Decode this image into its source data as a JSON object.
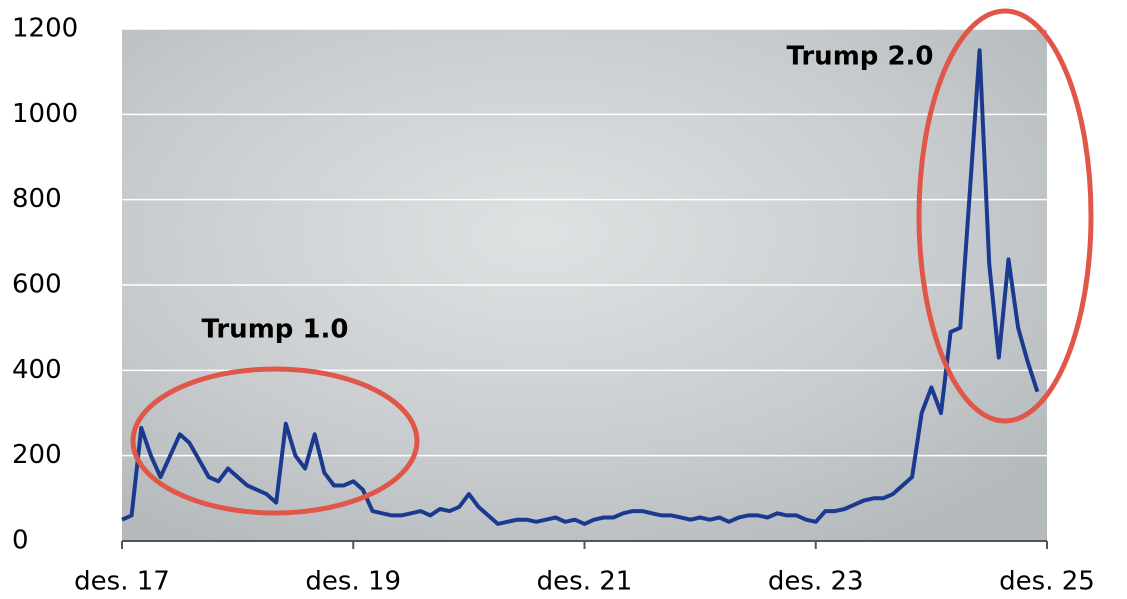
{
  "chart_data": {
    "type": "line",
    "x": [
      "2017-12",
      "2018-01",
      "2018-02",
      "2018-03",
      "2018-04",
      "2018-05",
      "2018-06",
      "2018-07",
      "2018-08",
      "2018-09",
      "2018-10",
      "2018-11",
      "2018-12",
      "2019-01",
      "2019-02",
      "2019-03",
      "2019-04",
      "2019-05",
      "2019-06",
      "2019-07",
      "2019-08",
      "2019-09",
      "2019-10",
      "2019-11",
      "2019-12",
      "2020-01",
      "2020-02",
      "2020-03",
      "2020-04",
      "2020-05",
      "2020-06",
      "2020-07",
      "2020-08",
      "2020-09",
      "2020-10",
      "2020-11",
      "2020-12",
      "2021-01",
      "2021-02",
      "2021-03",
      "2021-04",
      "2021-05",
      "2021-06",
      "2021-07",
      "2021-08",
      "2021-09",
      "2021-10",
      "2021-11",
      "2021-12",
      "2022-01",
      "2022-02",
      "2022-03",
      "2022-04",
      "2022-05",
      "2022-06",
      "2022-07",
      "2022-08",
      "2022-09",
      "2022-10",
      "2022-11",
      "2022-12",
      "2023-01",
      "2023-02",
      "2023-03",
      "2023-04",
      "2023-05",
      "2023-06",
      "2023-07",
      "2023-08",
      "2023-09",
      "2023-10",
      "2023-11",
      "2023-12",
      "2024-01",
      "2024-02",
      "2024-03",
      "2024-04",
      "2024-05",
      "2024-06",
      "2024-07",
      "2024-08",
      "2024-09",
      "2024-10",
      "2024-11",
      "2024-12",
      "2025-01",
      "2025-02",
      "2025-03",
      "2025-04",
      "2025-05",
      "2025-06",
      "2025-07",
      "2025-08",
      "2025-09",
      "2025-10",
      "2025-11"
    ],
    "values": [
      50,
      60,
      265,
      200,
      150,
      200,
      250,
      230,
      190,
      150,
      140,
      170,
      150,
      130,
      120,
      110,
      90,
      275,
      200,
      170,
      250,
      160,
      130,
      130,
      140,
      120,
      70,
      65,
      60,
      60,
      65,
      70,
      60,
      75,
      70,
      80,
      110,
      80,
      60,
      40,
      45,
      50,
      50,
      45,
      50,
      55,
      45,
      50,
      40,
      50,
      55,
      55,
      65,
      70,
      70,
      65,
      60,
      60,
      55,
      50,
      55,
      50,
      55,
      45,
      55,
      60,
      60,
      55,
      65,
      60,
      60,
      50,
      45,
      70,
      70,
      75,
      85,
      95,
      100,
      100,
      110,
      130,
      150,
      300,
      360,
      300,
      490,
      500,
      820,
      1150,
      650,
      430,
      660,
      500,
      420,
      350
    ],
    "color": "#1a3a8f",
    "xlim": [
      "2017-12",
      "2025-12"
    ],
    "xticks": [
      {
        "value": "2017-12",
        "label": "des. 17"
      },
      {
        "value": "2019-12",
        "label": "des. 19"
      },
      {
        "value": "2021-12",
        "label": "des. 21"
      },
      {
        "value": "2023-12",
        "label": "des. 23"
      },
      {
        "value": "2025-12",
        "label": "des. 25"
      }
    ],
    "ylim": [
      0,
      1200
    ],
    "yticks": [
      0,
      200,
      400,
      600,
      800,
      1000,
      1200
    ],
    "grid": true,
    "annotations": [
      "Trump 1.0",
      "Trump 2.0"
    ]
  }
}
